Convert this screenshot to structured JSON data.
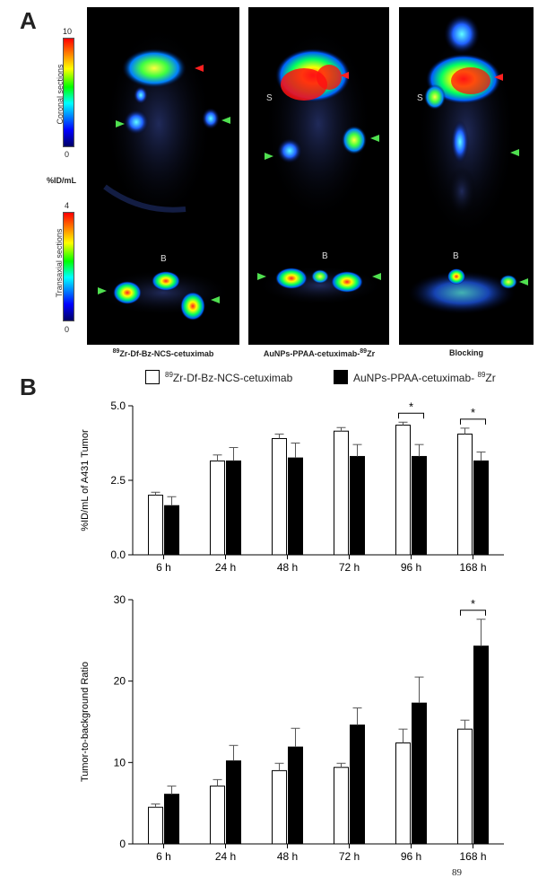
{
  "panel_a": {
    "letter": "A",
    "colorbar_top": {
      "max": "10",
      "min": "0",
      "section_label": "Coronal sections"
    },
    "colorbar_bottom": {
      "max": "4",
      "min": "0",
      "section_label": "Transaxial sections"
    },
    "unit": "%ID/mL",
    "mark_s": "S",
    "mark_b": "B",
    "captions": [
      {
        "sup": "89",
        "text": "Zr-Df-Bz-NCS-cetuximab"
      },
      {
        "pre": "AuNPs-PPAA-cetuximab-",
        "sup": "89",
        "text": "Zr"
      },
      {
        "text": "Blocking"
      }
    ]
  },
  "panel_b": {
    "letter": "B"
  },
  "legend": {
    "series1": {
      "sup": "89",
      "text": "Zr-Df-Bz-NCS-cetuximab"
    },
    "series2": {
      "pre": "AuNPs-PPAA-cetuximab- ",
      "sup": "89",
      "text": "Zr"
    }
  },
  "page_number": "89",
  "chart_data": [
    {
      "type": "bar",
      "categories": [
        "6 h",
        "24 h",
        "48 h",
        "72 h",
        "96 h",
        "168 h"
      ],
      "ylabel": "%ID/mL of A431 Tumor",
      "xlabel": "",
      "ylim": [
        0,
        5.0
      ],
      "yticks": [
        0.0,
        2.5,
        5.0
      ],
      "series": [
        {
          "name": "89Zr-Df-Bz-NCS-cetuximab",
          "color": "#ffffff",
          "values": [
            2.0,
            3.15,
            3.9,
            4.15,
            4.35,
            4.05
          ],
          "errors": [
            0.1,
            0.2,
            0.15,
            0.12,
            0.1,
            0.2
          ]
        },
        {
          "name": "AuNPs-PPAA-cetuximab- 89Zr",
          "color": "#000000",
          "values": [
            1.65,
            3.15,
            3.25,
            3.3,
            3.3,
            3.15
          ],
          "errors": [
            0.3,
            0.45,
            0.5,
            0.4,
            0.4,
            0.3
          ]
        }
      ],
      "significance": [
        {
          "category_index": 4,
          "label": "*"
        },
        {
          "category_index": 5,
          "label": "*"
        }
      ]
    },
    {
      "type": "bar",
      "categories": [
        "6 h",
        "24 h",
        "48 h",
        "72 h",
        "96 h",
        "168 h"
      ],
      "ylabel": "Tumor-to-background Ratio",
      "xlabel": "",
      "ylim": [
        0,
        30
      ],
      "yticks": [
        0,
        10,
        20,
        30
      ],
      "series": [
        {
          "name": "89Zr-Df-Bz-NCS-cetuximab",
          "color": "#ffffff",
          "values": [
            4.5,
            7.1,
            9.0,
            9.4,
            12.4,
            14.1
          ],
          "errors": [
            0.4,
            0.8,
            0.9,
            0.5,
            1.7,
            1.1
          ]
        },
        {
          "name": "AuNPs-PPAA-cetuximab- 89Zr",
          "color": "#000000",
          "values": [
            6.1,
            10.2,
            11.9,
            14.6,
            17.3,
            24.3
          ],
          "errors": [
            1.0,
            1.9,
            2.3,
            2.1,
            3.2,
            3.3
          ]
        }
      ],
      "significance": [
        {
          "category_index": 5,
          "label": "*"
        }
      ]
    }
  ]
}
